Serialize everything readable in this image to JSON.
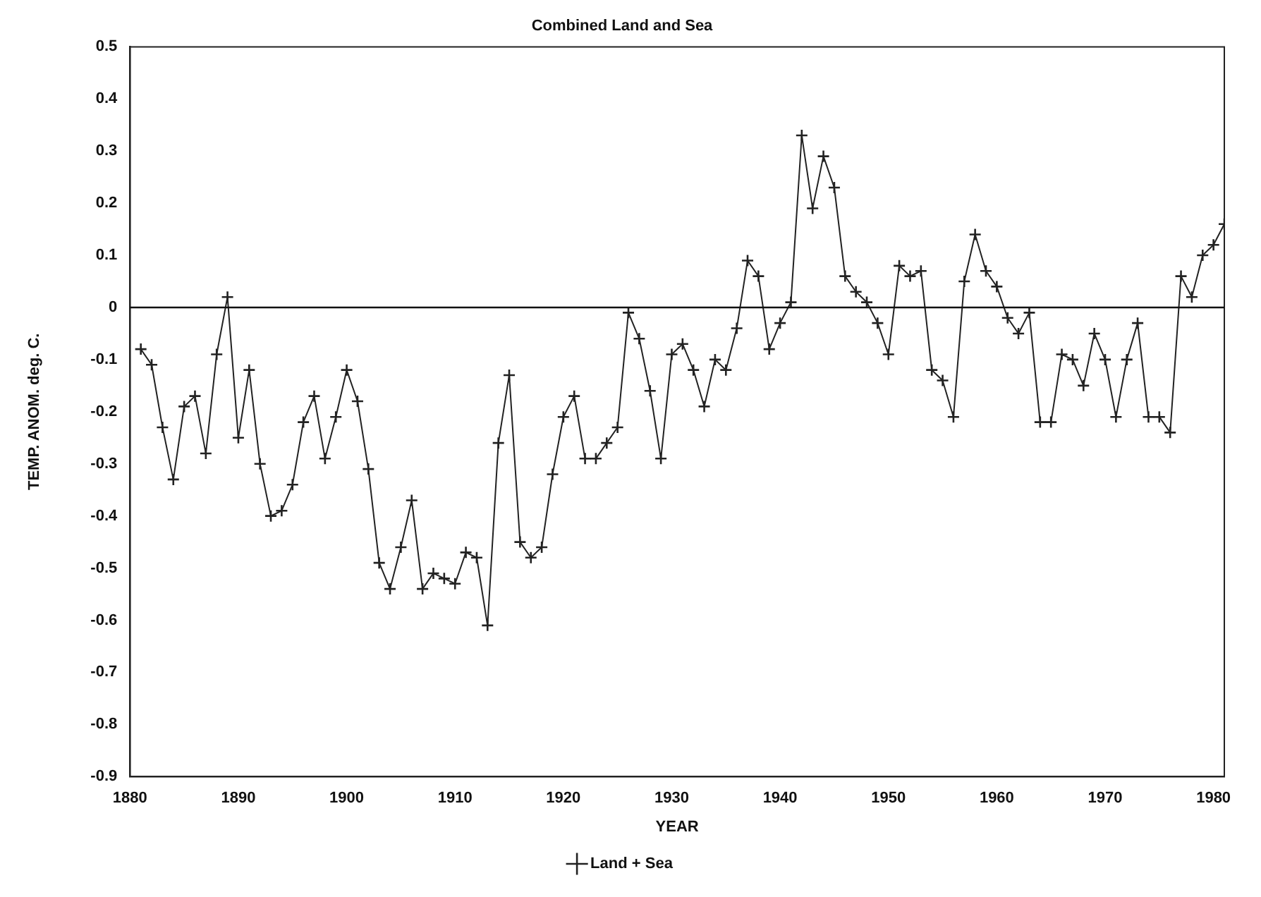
{
  "chart_data": {
    "type": "line",
    "title": "Combined Land and Sea",
    "xlabel": "YEAR",
    "ylabel": "TEMP. ANOM. deg. C.",
    "x": [
      1881,
      1882,
      1883,
      1884,
      1885,
      1886,
      1887,
      1888,
      1889,
      1890,
      1891,
      1892,
      1893,
      1894,
      1895,
      1896,
      1897,
      1898,
      1899,
      1900,
      1901,
      1902,
      1903,
      1904,
      1905,
      1906,
      1907,
      1908,
      1909,
      1910,
      1911,
      1912,
      1913,
      1914,
      1915,
      1916,
      1917,
      1918,
      1919,
      1920,
      1921,
      1922,
      1923,
      1924,
      1925,
      1926,
      1927,
      1928,
      1929,
      1930,
      1931,
      1932,
      1933,
      1934,
      1935,
      1936,
      1937,
      1938,
      1939,
      1940,
      1941,
      1942,
      1943,
      1944,
      1945,
      1946,
      1947,
      1948,
      1949,
      1950,
      1951,
      1952,
      1953,
      1954,
      1955,
      1956,
      1957,
      1958,
      1959,
      1960,
      1961,
      1962,
      1963,
      1964,
      1965,
      1966,
      1967,
      1968,
      1969,
      1970,
      1971,
      1972,
      1973,
      1974,
      1975,
      1976,
      1977,
      1978,
      1979,
      1980,
      1981
    ],
    "series": [
      {
        "name": "Land + Sea",
        "color": "#222222",
        "values": [
          -0.08,
          -0.11,
          -0.23,
          -0.33,
          -0.19,
          -0.17,
          -0.28,
          -0.09,
          0.02,
          -0.25,
          -0.12,
          -0.3,
          -0.4,
          -0.39,
          -0.34,
          -0.22,
          -0.17,
          -0.29,
          -0.21,
          -0.12,
          -0.18,
          -0.31,
          -0.49,
          -0.54,
          -0.46,
          -0.37,
          -0.54,
          -0.51,
          -0.52,
          -0.53,
          -0.47,
          -0.48,
          -0.61,
          -0.26,
          -0.13,
          -0.45,
          -0.48,
          -0.46,
          -0.32,
          -0.21,
          -0.17,
          -0.29,
          -0.29,
          -0.26,
          -0.23,
          -0.01,
          -0.06,
          -0.16,
          -0.29,
          -0.09,
          -0.07,
          -0.12,
          -0.19,
          -0.1,
          -0.12,
          -0.04,
          0.09,
          0.06,
          -0.08,
          -0.03,
          0.01,
          0.33,
          0.19,
          0.29,
          0.23,
          0.06,
          0.03,
          0.01,
          -0.03,
          -0.09,
          0.08,
          0.06,
          0.07,
          -0.12,
          -0.14,
          -0.21,
          0.05,
          0.14,
          0.07,
          0.04,
          -0.02,
          -0.05,
          -0.01,
          -0.22,
          -0.22,
          -0.09,
          -0.1,
          -0.15,
          -0.05,
          -0.1,
          -0.21,
          -0.1,
          -0.03,
          -0.21,
          -0.21,
          -0.24,
          0.06,
          0.02,
          0.1,
          0.12,
          0.16
        ]
      }
    ],
    "xlim": [
      1880,
      1981
    ],
    "xticks": [
      1880,
      1890,
      1900,
      1910,
      1920,
      1930,
      1940,
      1950,
      1960,
      1970,
      1980
    ],
    "ylim": [
      -0.9,
      0.5
    ],
    "yticks": [
      -0.9,
      -0.8,
      -0.7,
      -0.6,
      -0.5,
      -0.4,
      -0.3,
      -0.2,
      -0.1,
      0,
      0.1,
      0.2,
      0.3,
      0.4,
      0.5
    ],
    "ref_lines": [
      {
        "axis": "y",
        "value": 0,
        "color": "#111111"
      }
    ],
    "grid": false,
    "legend": "bottom",
    "marker": "cross",
    "line_style": "solid"
  }
}
